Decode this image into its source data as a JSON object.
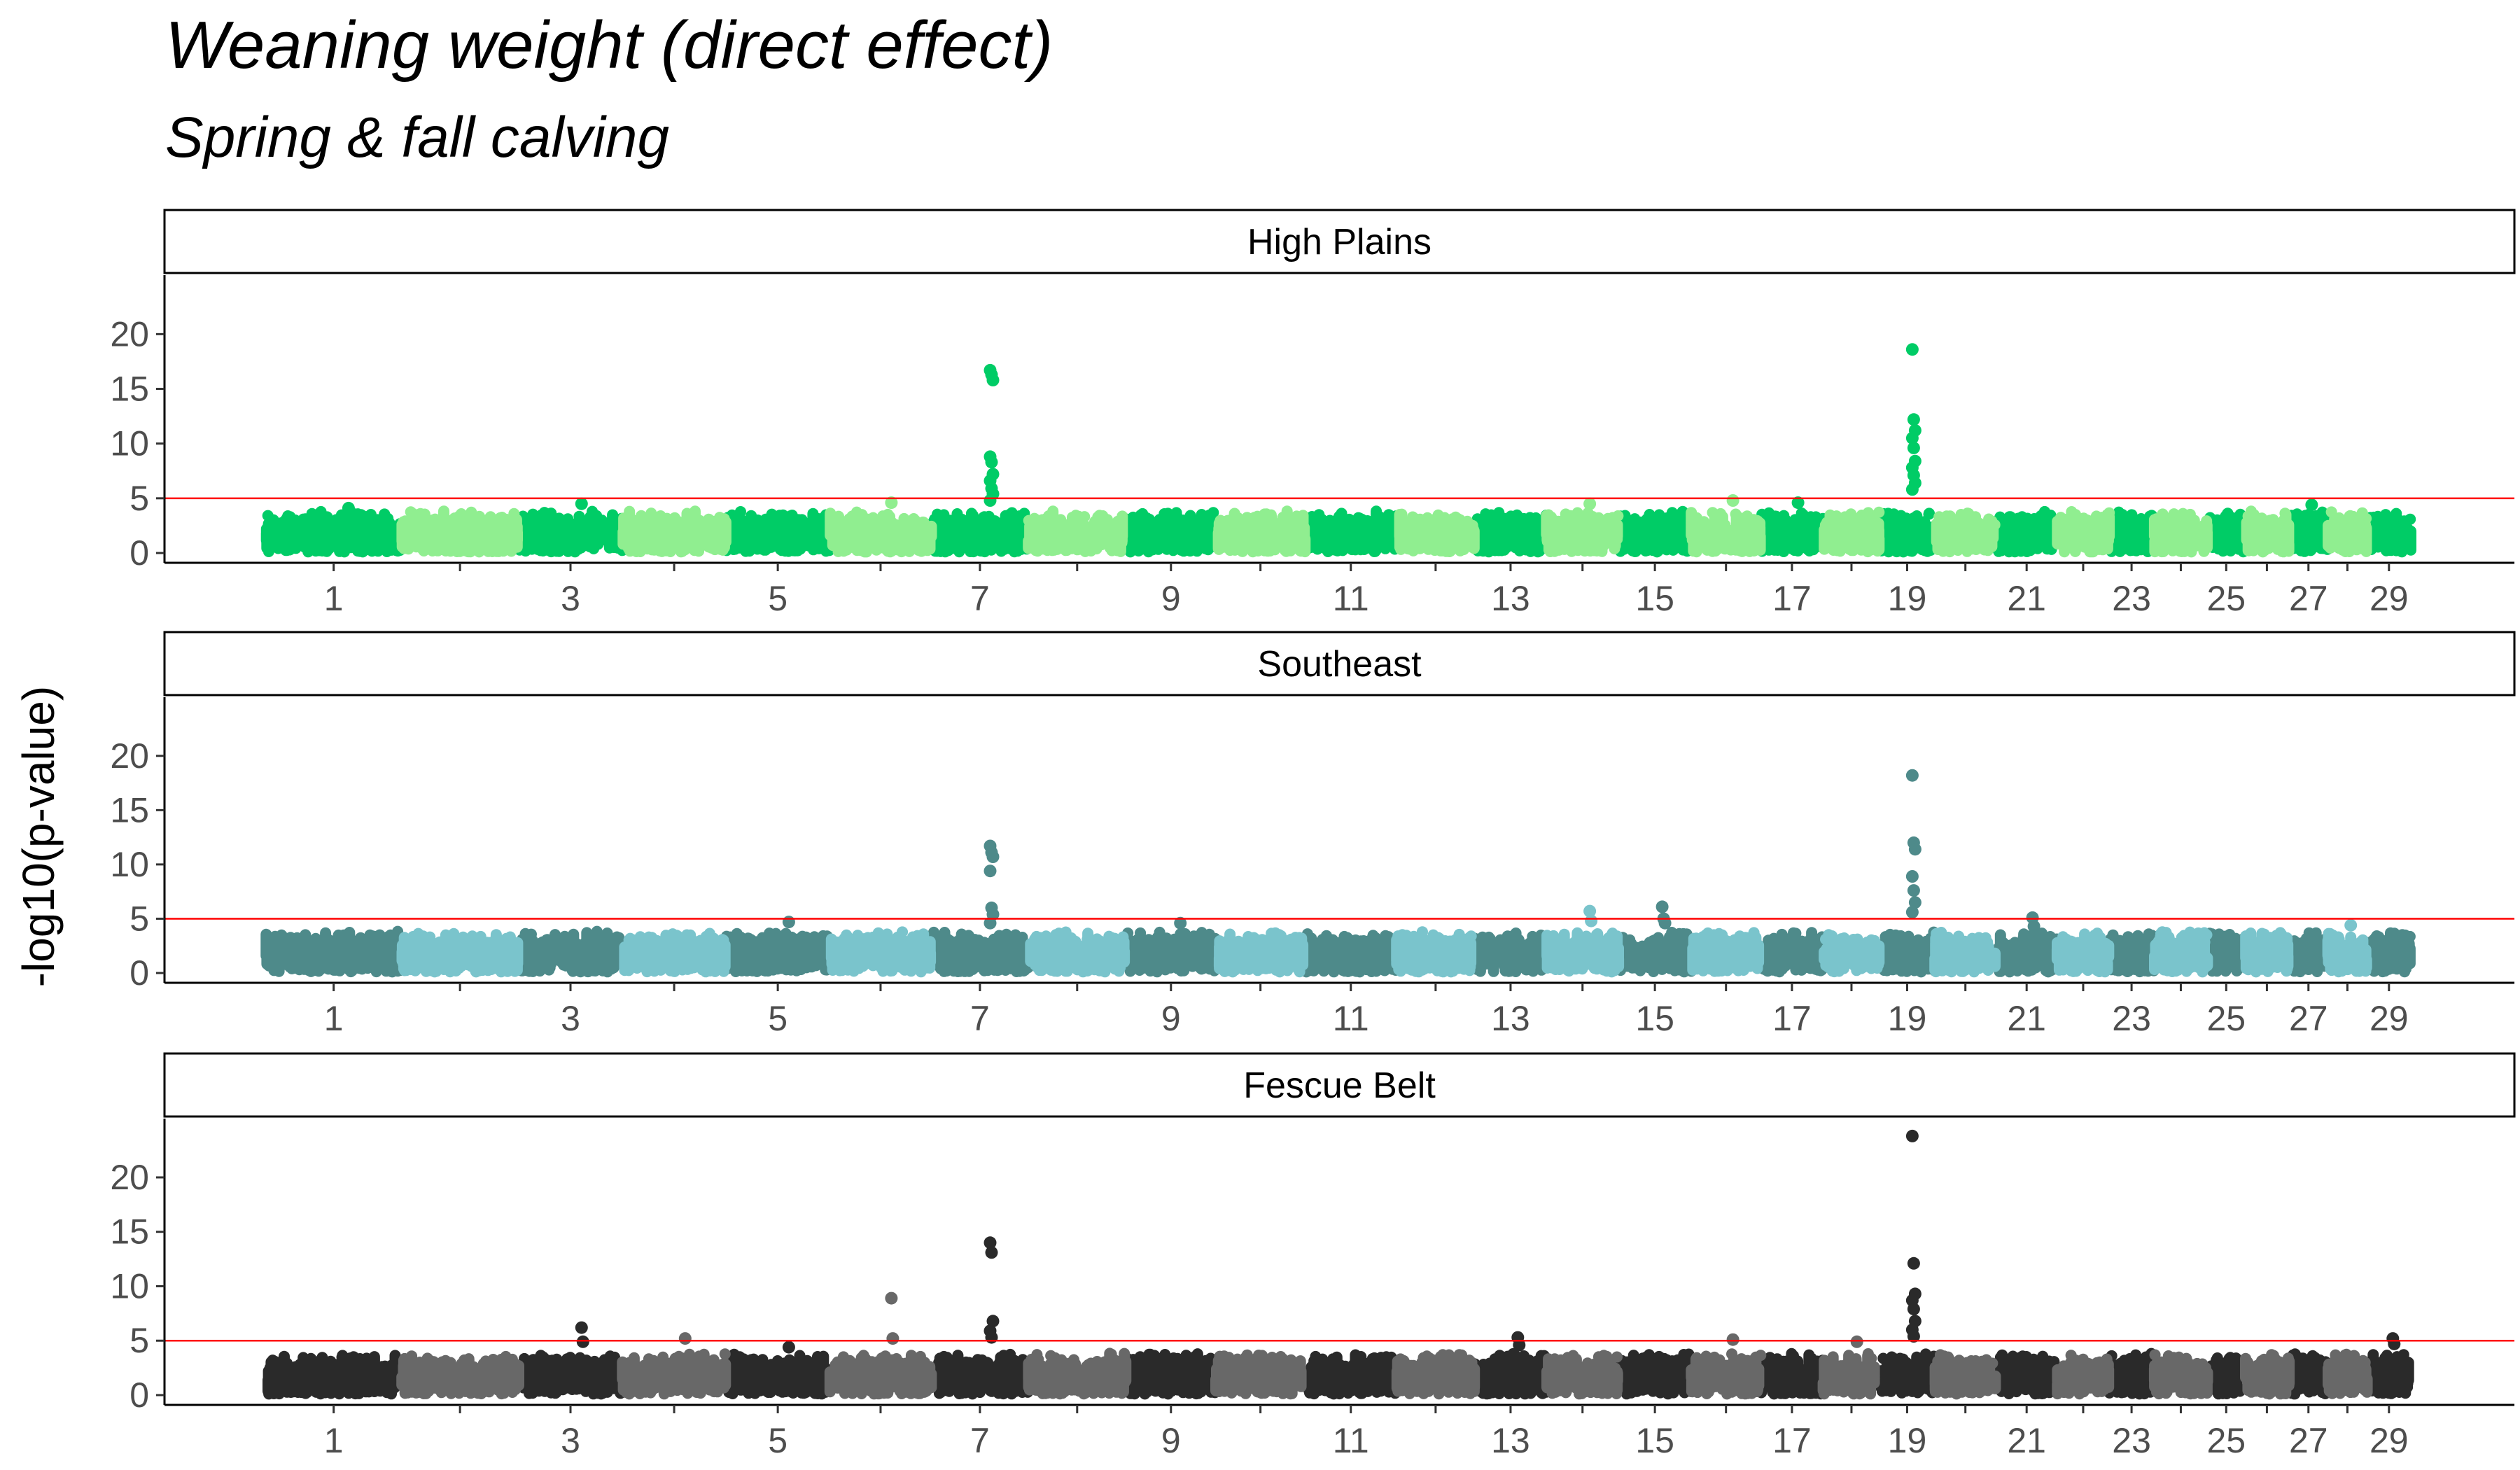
{
  "chart_data": {
    "type": "scatter",
    "title": "Weaning weight (direct effect)",
    "subtitle": "Spring & fall calving",
    "ylabel": "-log10(p-value)",
    "xlabel": "",
    "ylim": [
      -0.5,
      25
    ],
    "yticks": [
      0,
      5,
      10,
      15,
      20
    ],
    "threshold": 5,
    "threshold_color": "#ff0000",
    "grid": false,
    "chromosomes": [
      1,
      2,
      3,
      4,
      5,
      6,
      7,
      8,
      9,
      10,
      11,
      12,
      13,
      14,
      15,
      16,
      17,
      18,
      19,
      20,
      21,
      22,
      23,
      24,
      25,
      26,
      27,
      28,
      29
    ],
    "chromosome_tick_labels": [
      "1",
      "3",
      "5",
      "7",
      "9",
      "11",
      "13",
      "15",
      "17",
      "19",
      "21",
      "23",
      "25",
      "27",
      "29"
    ],
    "chromosome_lengths_mb": [
      158,
      137,
      121,
      121,
      121,
      119,
      113,
      114,
      105,
      104,
      107,
      91,
      84,
      84,
      85,
      81,
      73,
      66,
      64,
      72,
      71,
      61,
      52,
      63,
      43,
      52,
      45,
      46,
      51
    ],
    "facets": [
      {
        "name": "High Plains",
        "colors": [
          "#00cc66",
          "#90ee90"
        ],
        "peaks": [
          {
            "chr": 7,
            "values": [
              16.7,
              16.3,
              15.8,
              8.8,
              8.3,
              7.2,
              6.6,
              5.9,
              5.4,
              4.8
            ]
          },
          {
            "chr": 19,
            "values": [
              18.6,
              12.2,
              11.2,
              10.5,
              9.6,
              8.4,
              7.8,
              7.1,
              6.4,
              5.8
            ]
          },
          {
            "chr": 1,
            "values": [
              4.1,
              3.8
            ]
          },
          {
            "chr": 3,
            "values": [
              4.5
            ]
          },
          {
            "chr": 6,
            "values": [
              4.6
            ]
          },
          {
            "chr": 14,
            "values": [
              4.5
            ]
          },
          {
            "chr": 16,
            "values": [
              4.8
            ]
          },
          {
            "chr": 17,
            "values": [
              4.6
            ]
          },
          {
            "chr": 27,
            "values": [
              4.4
            ]
          }
        ]
      },
      {
        "name": "Southeast",
        "colors": [
          "#4e8a8a",
          "#7ac4cc"
        ],
        "peaks": [
          {
            "chr": 7,
            "values": [
              11.7,
              11.1,
              10.7,
              9.4,
              6.0,
              5.4,
              4.6
            ]
          },
          {
            "chr": 19,
            "values": [
              18.2,
              12.0,
              11.4,
              8.9,
              7.6,
              6.5,
              5.6
            ]
          },
          {
            "chr": 14,
            "values": [
              5.7,
              4.8
            ]
          },
          {
            "chr": 15,
            "values": [
              6.1,
              5.0,
              4.6
            ]
          },
          {
            "chr": 21,
            "values": [
              5.1,
              4.3
            ]
          },
          {
            "chr": 5,
            "values": [
              4.7
            ]
          },
          {
            "chr": 9,
            "values": [
              4.6
            ]
          },
          {
            "chr": 28,
            "values": [
              4.4
            ]
          }
        ]
      },
      {
        "name": "Fescue Belt",
        "colors": [
          "#2a2a2a",
          "#686868"
        ],
        "peaks": [
          {
            "chr": 7,
            "values": [
              14.0,
              13.1,
              6.8,
              5.9,
              5.3
            ]
          },
          {
            "chr": 19,
            "values": [
              23.8,
              12.1,
              9.3,
              8.7,
              7.9,
              6.8,
              6.0,
              5.4
            ]
          },
          {
            "chr": 6,
            "values": [
              8.9,
              5.2
            ]
          },
          {
            "chr": 3,
            "values": [
              6.2,
              4.9
            ]
          },
          {
            "chr": 13,
            "values": [
              5.3,
              4.6
            ]
          },
          {
            "chr": 16,
            "values": [
              5.1
            ]
          },
          {
            "chr": 18,
            "values": [
              4.9
            ]
          },
          {
            "chr": 29,
            "values": [
              5.2,
              4.7
            ]
          },
          {
            "chr": 5,
            "values": [
              4.4
            ]
          },
          {
            "chr": 4,
            "values": [
              5.2
            ]
          }
        ]
      }
    ]
  }
}
